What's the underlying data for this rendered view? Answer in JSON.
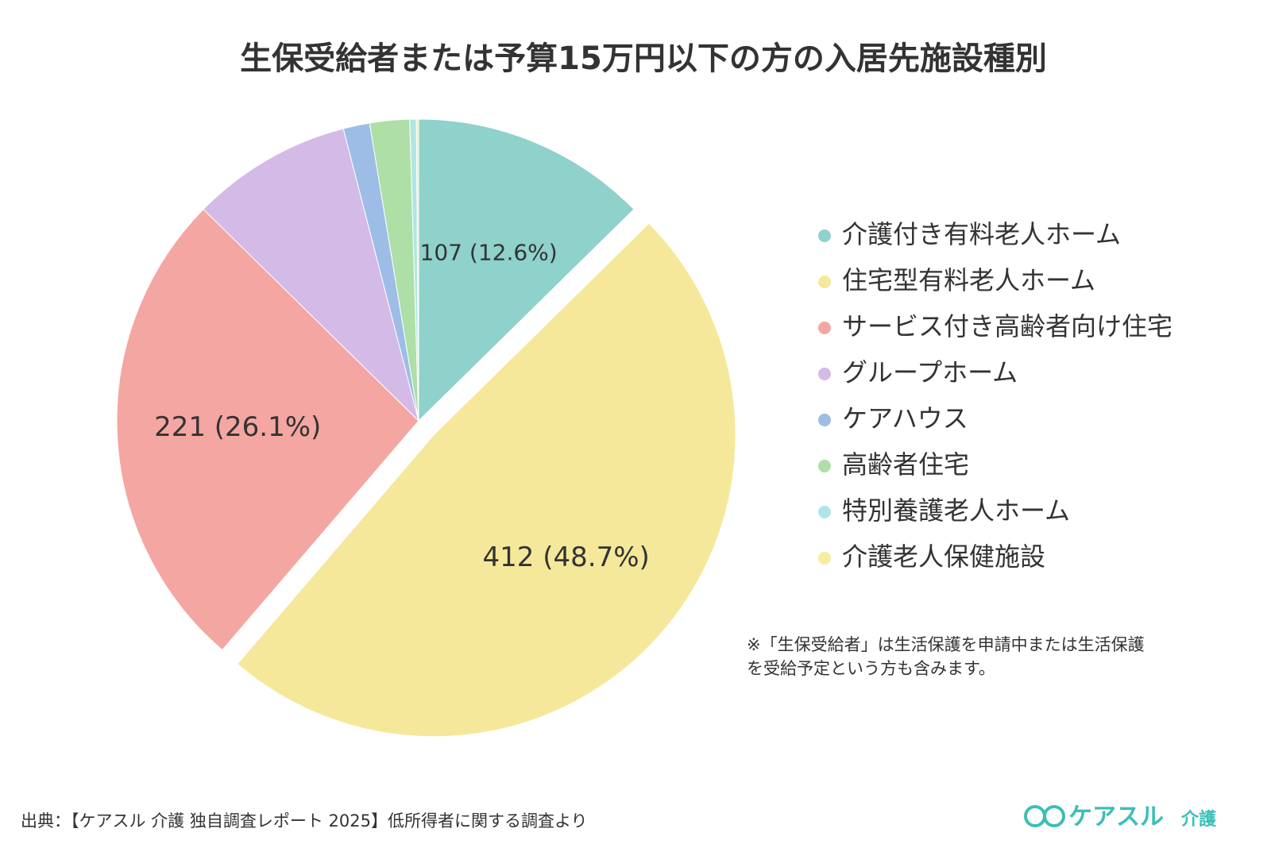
{
  "chart_data": {
    "type": "pie",
    "title": "生保受給者または予算15万円以下の方の入居先施設種別",
    "categories": [
      "介護付き有料老人ホーム",
      "住宅型有料老人ホーム",
      "サービス付き高齢者向け住宅",
      "グループホーム",
      "ケアハウス",
      "高齢者住宅",
      "特別養護老人ホーム",
      "介護老人保健施設"
    ],
    "values": [
      107,
      412,
      221,
      73,
      12,
      18,
      3,
      1
    ],
    "value_labels": [
      "107 (12.6%)",
      "412 (48.7%)",
      "221 (26.1%)",
      null,
      null,
      null,
      null,
      null
    ],
    "colors": [
      "#8fd1cb",
      "#f5e89a",
      "#f4a6a2",
      "#d4bae6",
      "#9dbde6",
      "#addfa6",
      "#b1e5e5",
      "#f5eda0"
    ],
    "legend": "right"
  },
  "note": [
    "※「生保受給者」は生活保護を申請中または生活保護",
    "を受給予定という方も含みます。"
  ],
  "source": "出典：【ケアスル 介護 独自調査レポート 2025】低所得者に関する調査より",
  "logo": {
    "brand": "ケアスル",
    "sub": "介護"
  }
}
